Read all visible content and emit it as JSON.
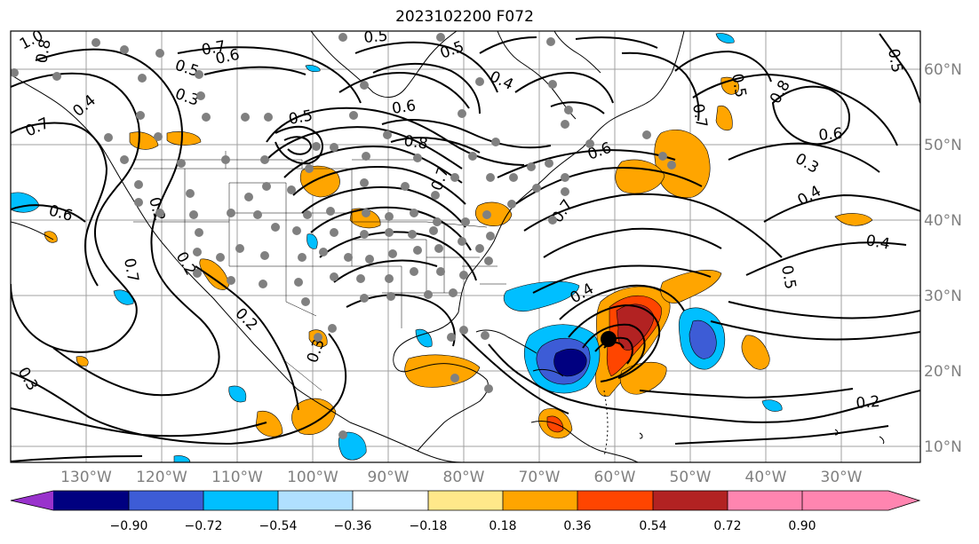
{
  "title": "2023102200 F072",
  "axes": {
    "lon_ticks": [
      "130°W",
      "120°W",
      "110°W",
      "100°W",
      "90°W",
      "80°W",
      "70°W",
      "60°W",
      "50°W",
      "40°W",
      "30°W"
    ],
    "lat_ticks": [
      "60°N",
      "50°N",
      "40°N",
      "30°N",
      "20°N",
      "10°N"
    ]
  },
  "colorbar": {
    "ticks": [
      "−0.90",
      "−0.72",
      "−0.54",
      "−0.36",
      "−0.18",
      "0.18",
      "0.36",
      "0.54",
      "0.72",
      "0.90"
    ],
    "colors": [
      "#9932cc",
      "#000080",
      "#3d5cd6",
      "#00bfff",
      "#b0e0ff",
      "#ffffff",
      "#ffe88a",
      "#ffa500",
      "#ff4500",
      "#b22222",
      "#ff85b0"
    ]
  },
  "contour_labels": [
    "1.0",
    "0.8",
    "0.7",
    "0.6",
    "0.5",
    "0.3",
    "0.7",
    "0.4",
    "0.5",
    "0.6",
    "0.8",
    "0.6",
    "0.7",
    "0.7",
    "0.6",
    "0.3",
    "0.4",
    "0.6",
    "0.2",
    "0.7",
    "0.2",
    "0.2",
    "0.3",
    "0.4",
    "0.4",
    "0.5",
    "0.5",
    "0.5",
    "0.8",
    "0.2",
    "0.4",
    "0.5",
    "0.3",
    "0.7",
    "0.5"
  ],
  "storm_marker": "black-dot"
}
